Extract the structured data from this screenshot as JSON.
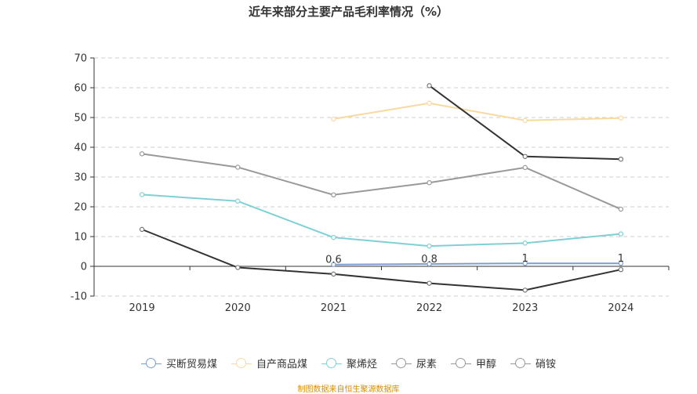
{
  "chart_data": {
    "type": "line",
    "title": "近年来部分主要产品毛利率情况（%）",
    "xlabel": "",
    "ylabel": "",
    "categories": [
      "2019",
      "2020",
      "2021",
      "2022",
      "2023",
      "2024"
    ],
    "ylim": [
      -10,
      70
    ],
    "yticks": [
      -10,
      0,
      10,
      20,
      30,
      40,
      50,
      60,
      70
    ],
    "grid": true,
    "legend_position": "bottom",
    "series": [
      {
        "name": "买断贸易煤",
        "color": "#7b9fcf",
        "values": [
          null,
          null,
          0.6,
          0.8,
          1,
          1
        ],
        "labels": [
          "",
          "",
          "0.6",
          "0.8",
          "1",
          "1"
        ]
      },
      {
        "name": "自产商品煤",
        "color": "#f8d9a0",
        "values": [
          null,
          null,
          49.5,
          54.8,
          49,
          49.8
        ],
        "labels": [
          "",
          "",
          "",
          "",
          "",
          ""
        ]
      },
      {
        "name": "聚烯烃",
        "color": "#7fd0d4",
        "values": [
          24.1,
          21.9,
          9.7,
          6.8,
          7.8,
          10.9
        ],
        "labels": [
          "",
          "",
          "",
          "",
          "",
          ""
        ]
      },
      {
        "name": "尿素",
        "color": "#999999",
        "values": [
          37.8,
          33.3,
          24,
          28.1,
          33.2,
          19.2
        ],
        "labels": [
          "",
          "",
          "",
          "",
          "",
          ""
        ]
      },
      {
        "name": "甲醇",
        "color": "#333333",
        "values": [
          12.4,
          -0.4,
          -2.6,
          -5.7,
          -8,
          -1.1
        ],
        "labels": [
          "",
          "",
          "",
          "",
          "",
          ""
        ]
      },
      {
        "name": "硝铵",
        "color": "#333333",
        "values": [
          null,
          null,
          null,
          60.7,
          36.9,
          36
        ],
        "labels": [
          "",
          "",
          "",
          "",
          "",
          ""
        ]
      }
    ],
    "legend_marker_colors": [
      "#7b9fcf",
      "#f8d9a0",
      "#7fd0d4",
      "#999999",
      "#999999",
      "#999999"
    ]
  },
  "source_note": "制图数据来自恒生聚源数据库"
}
